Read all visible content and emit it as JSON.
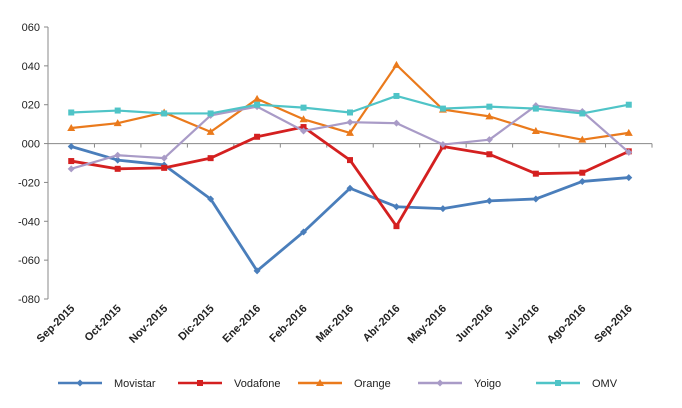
{
  "chart_data": {
    "type": "line",
    "title": "",
    "xlabel": "",
    "ylabel": "",
    "categories": [
      "Sep-2015",
      "Oct-2015",
      "Nov-2015",
      "Dic-2015",
      "Ene-2016",
      "Feb-2016",
      "Mar-2016",
      "Abr-2016",
      "May-2016",
      "Jun-2016",
      "Jul-2016",
      "Ago-2016",
      "Sep-2016"
    ],
    "ylim": [
      -80,
      60
    ],
    "yticks": [
      60,
      40,
      20,
      0,
      -20,
      -40,
      -60,
      -80
    ],
    "ytick_labels": [
      "060",
      "040",
      "020",
      "000",
      "-020",
      "-040",
      "-060",
      "-080"
    ],
    "grid": false,
    "legend_position": "bottom",
    "series": [
      {
        "name": "Movistar",
        "color": "#4a7ebb",
        "marker": "diamond",
        "values": [
          -1.5,
          -8.5,
          -11,
          -28.5,
          -65.5,
          -45.5,
          -23,
          -32.5,
          -33.5,
          -29.5,
          -28.5,
          -19.5,
          -17.5
        ]
      },
      {
        "name": "Vodafone",
        "color": "#d42020",
        "marker": "square",
        "values": [
          -9,
          -13,
          -12.5,
          -7.5,
          3.5,
          8.5,
          -8.5,
          -42.5,
          -1.5,
          -5.5,
          -15.5,
          -15,
          -4
        ]
      },
      {
        "name": "Orange",
        "color": "#ea7a1c",
        "marker": "triangle",
        "values": [
          8,
          10.5,
          16,
          6,
          23,
          12.5,
          5.5,
          40.5,
          17.5,
          14,
          6.5,
          2,
          5.5
        ]
      },
      {
        "name": "Yoigo",
        "color": "#a99bc7",
        "marker": "diamond",
        "values": [
          -13,
          -6,
          -7.5,
          14.5,
          19,
          6.5,
          11,
          10.5,
          -0.5,
          2,
          19.5,
          16.5,
          -4.5
        ]
      },
      {
        "name": "OMV",
        "color": "#4fc4c7",
        "marker": "square",
        "values": [
          16,
          17,
          15.5,
          15.5,
          20,
          18.5,
          16,
          24.5,
          18,
          19,
          18,
          15.5,
          20
        ]
      }
    ]
  }
}
